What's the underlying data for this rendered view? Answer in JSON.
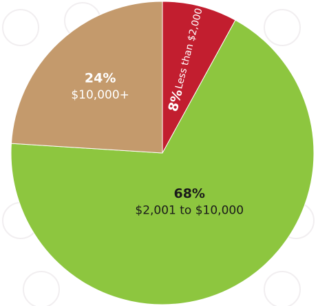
{
  "chart_data": {
    "type": "pie",
    "categories": [
      "Less than $2,000",
      "$2,001 to $10,000",
      "$10,000+"
    ],
    "values": [
      8,
      68,
      24
    ],
    "value_labels": [
      "8%",
      "68%",
      "24%"
    ],
    "colors": [
      "#c21e2f",
      "#8dc63f",
      "#c49a6c"
    ]
  }
}
